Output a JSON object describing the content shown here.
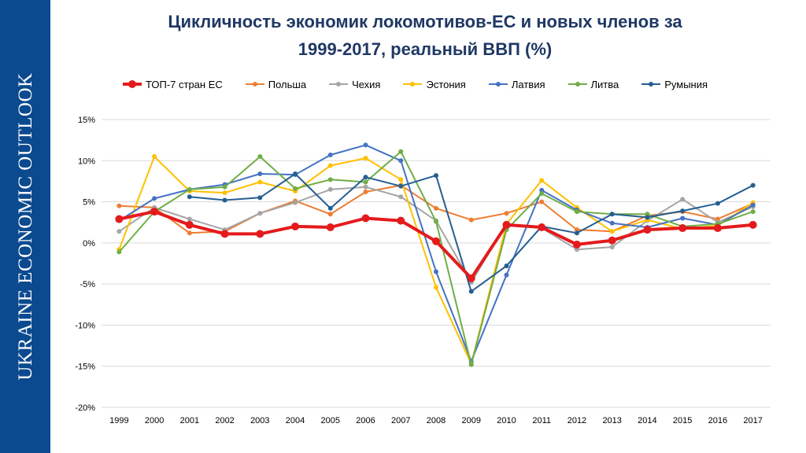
{
  "sidebar": {
    "text": "UKRAINE ECONOMIC OUTLOOK"
  },
  "chart_data": {
    "type": "line",
    "title_line1": "Цикличность экономик локомотивов-ЕС и новых членов за",
    "title_line2": "1999-2017, реальный ВВП (%)",
    "xlabel": "",
    "ylabel": "",
    "categories": [
      "1999",
      "2000",
      "2001",
      "2002",
      "2003",
      "2004",
      "2005",
      "2006",
      "2007",
      "2008",
      "2009",
      "2010",
      "2011",
      "2012",
      "2013",
      "2014",
      "2015",
      "2016",
      "2017"
    ],
    "ylim": [
      -20,
      15
    ],
    "yticks": [
      15,
      10,
      5,
      0,
      -5,
      -10,
      -15,
      -20
    ],
    "ytick_labels": [
      "15%",
      "10%",
      "5%",
      "0%",
      "-5%",
      "-10%",
      "-15%",
      "-20%"
    ],
    "grid": true,
    "legend_position": "top",
    "series": [
      {
        "name": "ТОП-7 стран ЕС",
        "color": "#e41a1c",
        "bold": true,
        "values": [
          2.9,
          3.8,
          2.2,
          1.1,
          1.1,
          2.0,
          1.9,
          3.0,
          2.7,
          0.2,
          -4.3,
          2.2,
          1.9,
          -0.2,
          0.3,
          1.6,
          1.8,
          1.8,
          2.2
        ]
      },
      {
        "name": "Польша",
        "color": "#ed7d31",
        "values": [
          4.5,
          4.3,
          1.2,
          1.4,
          3.6,
          5.1,
          3.5,
          6.2,
          7.0,
          4.2,
          2.8,
          3.6,
          5.0,
          1.6,
          1.4,
          3.3,
          3.8,
          2.9,
          4.8
        ]
      },
      {
        "name": "Чехия",
        "color": "#a5a5a5",
        "values": [
          1.4,
          4.3,
          2.9,
          1.6,
          3.6,
          4.9,
          6.5,
          6.8,
          5.6,
          2.7,
          -4.8,
          2.3,
          1.8,
          -0.8,
          -0.5,
          2.7,
          5.3,
          2.5,
          4.4
        ]
      },
      {
        "name": "Эстония",
        "color": "#ffc000",
        "values": [
          -0.8,
          10.5,
          6.3,
          6.1,
          7.4,
          6.3,
          9.4,
          10.3,
          7.7,
          -5.4,
          -14.7,
          2.3,
          7.6,
          4.3,
          1.4,
          2.8,
          1.7,
          2.1,
          4.9
        ]
      },
      {
        "name": "Латвия",
        "color": "#4472c4",
        "values": [
          2.7,
          5.4,
          6.5,
          7.1,
          8.4,
          8.3,
          10.7,
          11.9,
          10.0,
          -3.5,
          -14.4,
          -3.9,
          6.4,
          4.0,
          2.4,
          1.9,
          3.0,
          2.2,
          4.6
        ]
      },
      {
        "name": "Литва",
        "color": "#70ad47",
        "values": [
          -1.1,
          3.8,
          6.5,
          6.8,
          10.5,
          6.6,
          7.7,
          7.4,
          11.1,
          2.6,
          -14.8,
          1.6,
          6.0,
          3.8,
          3.5,
          3.5,
          2.0,
          2.3,
          3.8
        ]
      },
      {
        "name": "Румыния",
        "color": "#255e91",
        "values": [
          null,
          null,
          5.6,
          5.2,
          5.5,
          8.4,
          4.2,
          8.0,
          6.9,
          8.2,
          -5.9,
          -2.8,
          2.0,
          1.2,
          3.5,
          3.1,
          3.9,
          4.8,
          7.0
        ]
      }
    ]
  }
}
